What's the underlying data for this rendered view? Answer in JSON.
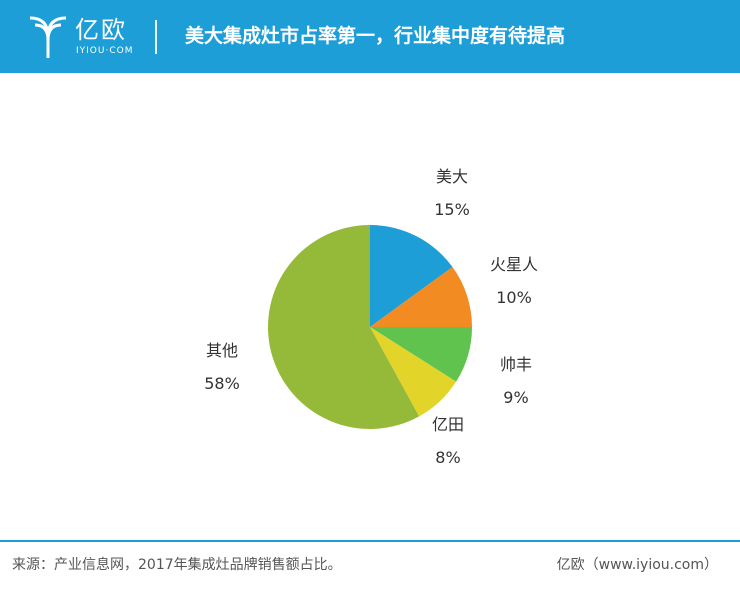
{
  "header": {
    "logo_cn": "亿欧",
    "logo_en": "IYIOU·COM",
    "title": "美大集成灶市占率第一，行业集中度有待提高",
    "background_color": "#1e9ed6"
  },
  "chart_data": {
    "type": "pie",
    "title": "",
    "slices": [
      {
        "label": "美大",
        "value": 15,
        "value_label": "15%",
        "color": "#1e9ed6"
      },
      {
        "label": "火星人",
        "value": 10,
        "value_label": "10%",
        "color": "#f28c22"
      },
      {
        "label": "帅丰",
        "value": 9,
        "value_label": "9%",
        "color": "#5fc34d"
      },
      {
        "label": "亿田",
        "value": 8,
        "value_label": "8%",
        "color": "#e3d429"
      },
      {
        "label": "其他",
        "value": 58,
        "value_label": "58%",
        "color": "#95ba3a"
      }
    ],
    "start": "12 o'clock",
    "direction": "clockwise"
  },
  "footer": {
    "source": "来源：产业信息网，2017年集成灶品牌销售额占比。",
    "credit": "亿欧（www.iyiou.com）"
  }
}
